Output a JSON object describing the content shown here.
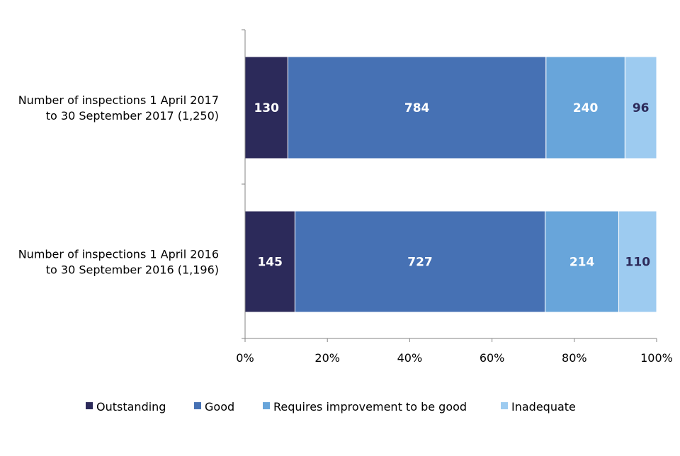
{
  "chart_data": {
    "type": "bar",
    "orientation": "horizontal",
    "stacked": "percent",
    "categories": [
      [
        "Number of inspections 1 April 2017",
        "to 30 September 2017 (1,250)"
      ],
      [
        "Number of inspections 1 April 2016",
        "to 30 September 2016 (1,196)"
      ]
    ],
    "series": [
      {
        "name": "Outstanding",
        "values": [
          130,
          145
        ],
        "color": "#2c2a5a",
        "label_color": "#ffffff"
      },
      {
        "name": "Good",
        "values": [
          784,
          727
        ],
        "color": "#4671b4",
        "label_color": "#ffffff"
      },
      {
        "name": "Requires improvement to be good",
        "values": [
          240,
          214
        ],
        "color": "#68a5da",
        "label_color": "#ffffff"
      },
      {
        "name": "Inadequate",
        "values": [
          96,
          110
        ],
        "color": "#9dcbf0",
        "label_color": "#2c2a5a"
      }
    ],
    "x_ticks": [
      "0%",
      "20%",
      "40%",
      "60%",
      "80%",
      "100%"
    ],
    "xlim": [
      0,
      100
    ],
    "xlabel": "",
    "ylabel": "",
    "title": "",
    "grid": false,
    "legend": "bottom"
  }
}
